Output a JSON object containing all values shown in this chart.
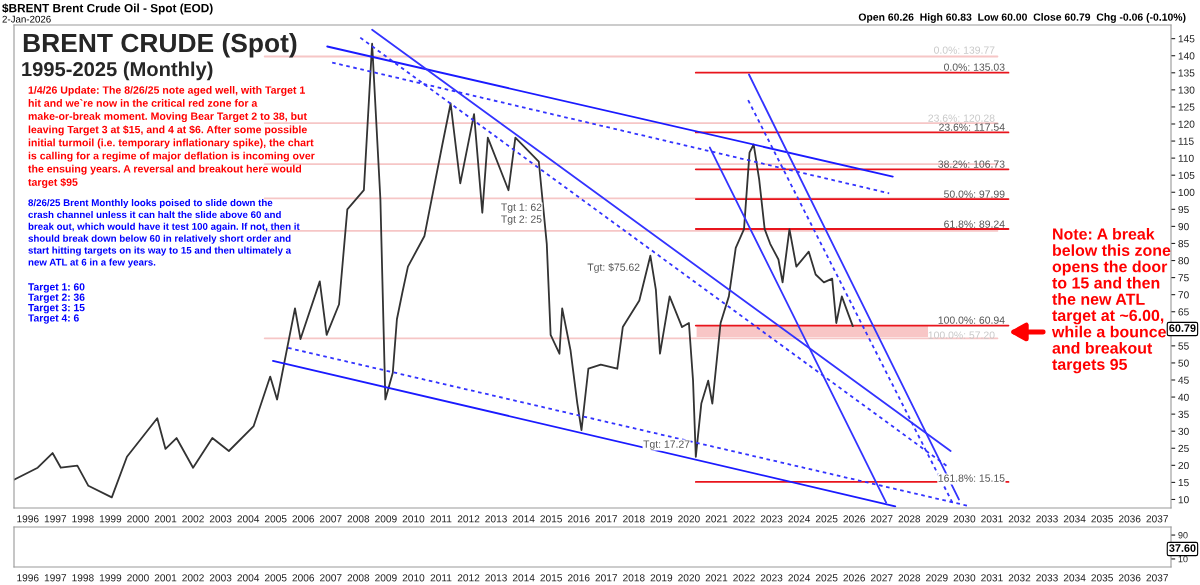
{
  "chart_data": [
    {
      "type": "line",
      "title": "BRENT CRUDE (Spot)",
      "subtitle": "1995-2025 (Monthly)",
      "xlim": [
        1995.5,
        2037.5
      ],
      "xticks": [
        1996,
        1997,
        1998,
        1999,
        2000,
        2001,
        2002,
        2003,
        2004,
        2005,
        2006,
        2007,
        2008,
        2009,
        2010,
        2011,
        2012,
        2013,
        2014,
        2015,
        2016,
        2017,
        2018,
        2019,
        2020,
        2021,
        2022,
        2023,
        2024,
        2025,
        2026,
        2027,
        2028,
        2029,
        2030,
        2031,
        2032,
        2033,
        2034,
        2035,
        2036,
        2037
      ],
      "ylim": [
        7.5,
        149
      ],
      "yticks": [
        10,
        15,
        20,
        25,
        30,
        35,
        40,
        45,
        50,
        55,
        65,
        70,
        75,
        80,
        85,
        90,
        95,
        100,
        105,
        110,
        115,
        120,
        125,
        130,
        135,
        140,
        145
      ],
      "series": [
        {
          "color": "#f6c6c6",
          "x": [
            2004.6,
            2031.2
          ],
          "values": [
            139.77,
            139.77
          ]
        },
        {
          "color": "#f6c6c6",
          "x": [
            2004.6,
            2031.2
          ],
          "values": [
            120.28,
            120.28
          ]
        },
        {
          "color": "#f6c6c6",
          "x": [
            2004.6,
            2031.2
          ],
          "values": [
            108.23,
            108.23
          ]
        },
        {
          "color": "#f6c6c6",
          "x": [
            2004.6,
            2031.2
          ],
          "values": [
            98.2,
            98.2
          ]
        },
        {
          "color": "#f6c6c6",
          "x": [
            2004.6,
            2031.2
          ],
          "values": [
            88.7,
            88.7
          ]
        },
        {
          "color": "#f6c6c6",
          "x": [
            2004.6,
            2031.2
          ],
          "values": [
            57.2,
            57.2
          ]
        },
        {
          "color": "#e8141c",
          "x": [
            2020.25,
            2031.6
          ],
          "values": [
            135.03,
            135.03
          ]
        },
        {
          "color": "#e8141c",
          "x": [
            2020.25,
            2031.6
          ],
          "values": [
            117.54,
            117.54
          ]
        },
        {
          "color": "#e8141c",
          "x": [
            2020.25,
            2031.6
          ],
          "values": [
            106.73,
            106.73
          ]
        },
        {
          "color": "#e8141c",
          "x": [
            2020.25,
            2031.6
          ],
          "values": [
            97.99,
            97.99
          ]
        },
        {
          "color": "#e8141c",
          "x": [
            2020.25,
            2031.6
          ],
          "values": [
            89.24,
            89.24
          ]
        },
        {
          "color": "#e8141c",
          "x": [
            2020.25,
            2031.6
          ],
          "values": [
            60.94,
            60.94
          ]
        },
        {
          "color": "#e8141c",
          "x": [
            2020.25,
            2031.6
          ],
          "values": [
            15.15,
            15.15
          ]
        },
        {
          "color": "#333333",
          "x": [
            1995.5,
            1996.36,
            1996.9,
            1997.2,
            1997.8,
            1998.2,
            1999.05,
            1999.6,
            2000.7,
            2001.0,
            2001.4,
            2002.0,
            2002.7,
            2003.3,
            2004.2,
            2004.8,
            2005.05,
            2005.7,
            2005.9,
            2006.6,
            2006.85,
            2007.3,
            2007.6,
            2008.2,
            2008.5,
            2008.8,
            2008.98,
            2009.25,
            2009.4,
            2009.6,
            2009.8,
            2010.4,
            2011.05,
            2011.35,
            2011.7,
            2012.2,
            2012.5,
            2012.7,
            2013.45,
            2013.7,
            2014.55,
            2014.84,
            2014.98,
            2015.3,
            2015.4,
            2015.7,
            2015.95,
            2016.1,
            2016.35,
            2016.8,
            2017.4,
            2017.6,
            2018.2,
            2018.6,
            2018.8,
            2018.95,
            2019.3,
            2019.75,
            2020.0,
            2020.15,
            2020.25,
            2020.45,
            2020.7,
            2020.85,
            2021.15,
            2021.45,
            2021.7,
            2022.0,
            2022.2,
            2022.35,
            2022.55,
            2022.75,
            2022.95,
            2023.25,
            2023.4,
            2023.65,
            2023.9,
            2024.35,
            2024.6,
            2024.9,
            2025.2,
            2025.35,
            2025.55,
            2025.8,
            2025.95
          ],
          "values": [
            15.8,
            19.3,
            23.6,
            19.3,
            19.9,
            14.0,
            10.6,
            22.5,
            33.8,
            24.8,
            28.0,
            19.3,
            28.0,
            24.2,
            31.5,
            46.0,
            39.3,
            66.0,
            57.0,
            73.9,
            58.2,
            67.2,
            95.0,
            100.6,
            143.5,
            98.0,
            39.3,
            47.1,
            62.8,
            70.7,
            78.2,
            87.2,
            114.0,
            126.0,
            102.6,
            122.9,
            94.0,
            116.0,
            100.6,
            116.0,
            109.0,
            84.9,
            58.2,
            52.7,
            66.0,
            53.8,
            38.1,
            30.3,
            48.3,
            49.5,
            48.3,
            60.5,
            68.3,
            81.4,
            71.5,
            52.7,
            69.5,
            60.5,
            61.7,
            44.8,
            22.5,
            38.1,
            44.8,
            38.1,
            61.7,
            69.5,
            83.7,
            89.2,
            111.6,
            114.0,
            103.8,
            89.2,
            84.9,
            80.3,
            73.6,
            89.2,
            78.2,
            82.6,
            75.9,
            73.6,
            74.7,
            61.7,
            69.5,
            64.0,
            60.8
          ]
        },
        {
          "color": "#1a1aff",
          "x": [
            2006.87,
            2027.4
          ],
          "values": [
            142.7,
            104.6
          ]
        },
        {
          "color": "#1a1aff",
          "x": [
            2004.9,
            2027.49
          ],
          "values": [
            50.6,
            8.0
          ]
        },
        {
          "color": "#3333ff",
          "line_style": "dotted",
          "x": [
            2007.05,
            2027.27
          ],
          "values": [
            138.0,
            99.7
          ]
        },
        {
          "color": "#3333ff",
          "line_style": "dotted",
          "x": [
            2005.45,
            2030.2
          ],
          "values": [
            54.4,
            8.0
          ]
        },
        {
          "color": "#3333ff",
          "x": [
            2008.5,
            2029.5
          ],
          "values": [
            147.6,
            24.2
          ]
        },
        {
          "color": "#3333ff",
          "line_style": "dotted",
          "x": [
            2008.07,
            2029.45
          ],
          "values": [
            145.3,
            19.3
          ]
        },
        {
          "color": "#3333ff",
          "x": [
            2020.76,
            2027.16
          ],
          "values": [
            113.1,
            9.1
          ]
        },
        {
          "color": "#3333ff",
          "x": [
            2022.18,
            2029.8
          ],
          "values": [
            134.5,
            10.0
          ]
        },
        {
          "color": "#3333ff",
          "line_style": "dotted",
          "x": [
            2022.15,
            2029.6
          ],
          "values": [
            127.0,
            8.5
          ]
        }
      ],
      "bands": [
        {
          "axis": "y",
          "from": 57.6,
          "to": 60.94,
          "color": "#f08080"
        }
      ],
      "annotations": [
        "$BRENT Brent Crude Oil - Spot (EOD)",
        "2-Jan-2026",
        "Open 60.26  High 60.83  Low 60.00  Close 60.79  Chg -0.06 (-0.10%)",
        "1/4/26 Update: The 8/26/25 note aged well, with Target 1\nhit and we`re now in the critical red zone for a\nmake-or-break moment. Moving Bear Target 2 to 38, but\nleaving Target 3 at $15, and 4 at $6. After some possible\ninitial turmoil (i.e. temporary inflationary spike), the chart\nis calling for a regime of major deflation is incoming over\nthe ensuing years. A reversal and breakout here would\ntarget $95",
        "8/26/25 Brent Monthly looks poised to slide down the\ncrash channel unless it can halt the slide above 60 and\nbreak out, which would have it test 100 again. If not, then it\nshould break down below 60 in relatively short order and\nstart hitting targets on its way to 15 and then ultimately a\nnew ATL at 6 in a few years.",
        "Target 1: 60\nTarget 2: 36\nTarget 3: 15\nTarget 4: 6",
        "Note: A break\nbelow this zone\nopens the door\nto 15 and then\nthe new ATL\ntarget at ~6.00,\nwhile a bounce\nand breakout\ntargets 95",
        "0.0%: 139.77",
        "23.6%: 120.28",
        "100.0%: 57.20",
        "0.0%: 135.03",
        "23.6%: 117.54",
        "38.2%: 106.73",
        "50.0%: 97.99",
        "61.8%: 89.24",
        "100.0%: 60.94",
        "161.8%: 15.15",
        "Tgt 1: 62",
        "Tgt 2: 25",
        "Tgt: $75.62",
        "Tgt: 17.27",
        "60.79"
      ]
    },
    {
      "type": "line",
      "xlim": [
        1995.5,
        2037.5
      ],
      "xticks": [
        1996,
        1997,
        1998,
        1999,
        2000,
        2001,
        2002,
        2003,
        2004,
        2005,
        2006,
        2007,
        2008,
        2009,
        2010,
        2011,
        2012,
        2013,
        2014,
        2015,
        2016,
        2017,
        2018,
        2019,
        2020,
        2021,
        2022,
        2023,
        2024,
        2025,
        2026,
        2027,
        2028,
        2029,
        2030,
        2031,
        2032,
        2033,
        2034,
        2035,
        2036,
        2037
      ],
      "ylim": [
        -17,
        117
      ],
      "yticks": [
        10,
        90
      ],
      "annotations": [
        "37.60"
      ]
    }
  ]
}
